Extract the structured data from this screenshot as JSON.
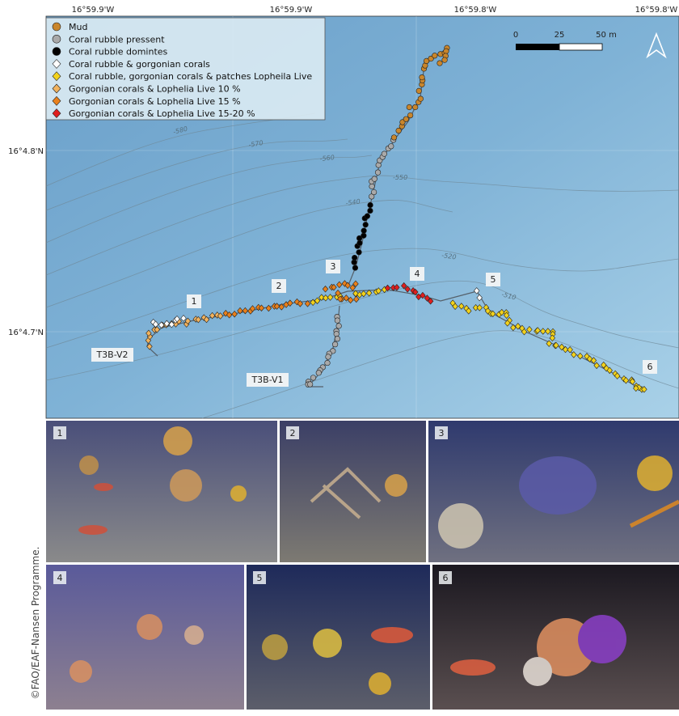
{
  "axes": {
    "top": [
      "16°59.9'W",
      "16°59.9'W",
      "16°59.8'W",
      "16°59.8'W"
    ],
    "left": [
      "16°4.8'N",
      "16°4.7'N"
    ]
  },
  "legend": [
    {
      "label": "Mud",
      "color": "#c9862c",
      "shape": "circle"
    },
    {
      "label": "Coral rubble pressent",
      "color": "#a9a9a9",
      "shape": "circle"
    },
    {
      "label": "Coral rubble domintes",
      "color": "#000000",
      "shape": "circle"
    },
    {
      "label": "Coral rubble  & gorgonian corals",
      "color": "#ffffff",
      "shape": "diamond"
    },
    {
      "label": "Coral rubble, gorgonian corals & patches Lopheila Live",
      "color": "#f2d21c",
      "shape": "diamond"
    },
    {
      "label": "Gorgonian corals & Lophelia Live 10 %",
      "color": "#f2b35e",
      "shape": "diamond"
    },
    {
      "label": "Gorgonian corals & Lophelia Live 15 %",
      "color": "#e9801c",
      "shape": "diamond"
    },
    {
      "label": "Gorgonian corals & Lophelia Live 15-20 %",
      "color": "#df1e1e",
      "shape": "diamond"
    }
  ],
  "scale_bar": [
    "0",
    "25",
    "50 m"
  ],
  "contours": [
    "-580",
    "-570",
    "-560",
    "-550",
    "-540",
    "-520",
    "-510"
  ],
  "site_labels": [
    "1",
    "2",
    "3",
    "4",
    "5",
    "6"
  ],
  "transects": [
    "T3B-V2",
    "T3B-V1"
  ],
  "photos": [
    "1",
    "2",
    "3",
    "4",
    "5",
    "6"
  ],
  "credit": "©FAO/EAF-Nansen Programme."
}
